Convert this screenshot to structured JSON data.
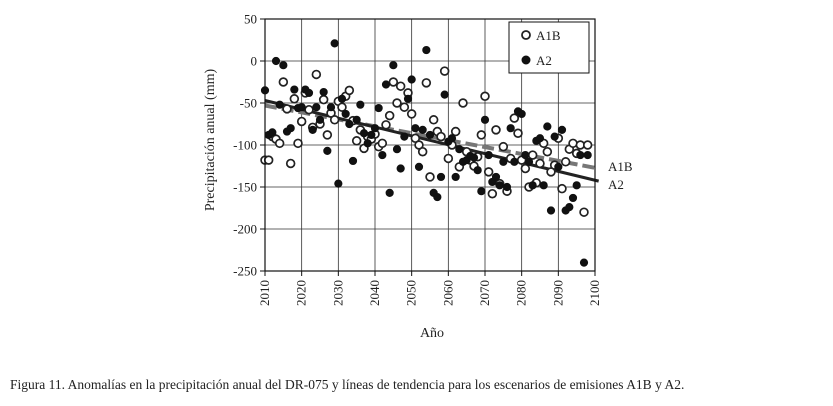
{
  "caption": "Figura 11. Anomalías en la precipitación anual del DR-075 y líneas de tendencia para los escenarios de emisiones A1B y A2.",
  "chart_data": {
    "type": "scatter",
    "title": "",
    "xlabel": "Año",
    "ylabel": "Precipitación anual (mm)",
    "xlim": [
      2010,
      2100
    ],
    "ylim": [
      -250,
      50
    ],
    "xticks": [
      "2010",
      "2020",
      "2030",
      "2040",
      "2050",
      "2060",
      "2070",
      "2080",
      "2090",
      "2100"
    ],
    "yticks": [
      "50",
      "0",
      "-50",
      "-100",
      "-150",
      "-200",
      "-250"
    ],
    "xtick_values": [
      2010,
      2020,
      2030,
      2040,
      2050,
      2060,
      2070,
      2080,
      2090,
      2100
    ],
    "ytick_values": [
      50,
      0,
      -50,
      -100,
      -150,
      -200,
      -250
    ],
    "grid": true,
    "legend_position": "top-right",
    "legend": [
      "A1B",
      "A2"
    ],
    "colors": {
      "A1B": "#222222",
      "A2": "#111111",
      "A1B_trend": "#777777",
      "A2_trend": "#222222"
    },
    "series": [
      {
        "name": "A1B",
        "marker": "open-circle",
        "points": [
          [
            2010,
            -118
          ],
          [
            2011,
            -118
          ],
          [
            2012,
            -90
          ],
          [
            2013,
            -93
          ],
          [
            2014,
            -98
          ],
          [
            2015,
            -25
          ],
          [
            2016,
            -57
          ],
          [
            2017,
            -122
          ],
          [
            2018,
            -45
          ],
          [
            2019,
            -98
          ],
          [
            2020,
            -72
          ],
          [
            2021,
            -38
          ],
          [
            2022,
            -58
          ],
          [
            2023,
            -79
          ],
          [
            2024,
            -16
          ],
          [
            2025,
            -75
          ],
          [
            2026,
            -46
          ],
          [
            2027,
            -88
          ],
          [
            2028,
            -62
          ],
          [
            2029,
            -70
          ],
          [
            2030,
            -48
          ],
          [
            2031,
            -55
          ],
          [
            2032,
            -42
          ],
          [
            2033,
            -35
          ],
          [
            2034,
            -71
          ],
          [
            2035,
            -95
          ],
          [
            2036,
            -82
          ],
          [
            2037,
            -104
          ],
          [
            2038,
            -90
          ],
          [
            2039,
            -93
          ],
          [
            2040,
            -87
          ],
          [
            2041,
            -102
          ],
          [
            2042,
            -98
          ],
          [
            2043,
            -76
          ],
          [
            2044,
            -65
          ],
          [
            2045,
            -25
          ],
          [
            2046,
            -50
          ],
          [
            2047,
            -30
          ],
          [
            2048,
            -55
          ],
          [
            2049,
            -38
          ],
          [
            2050,
            -63
          ],
          [
            2051,
            -92
          ],
          [
            2052,
            -100
          ],
          [
            2053,
            -108
          ],
          [
            2054,
            -26
          ],
          [
            2055,
            -138
          ],
          [
            2056,
            -70
          ],
          [
            2057,
            -84
          ],
          [
            2058,
            -90
          ],
          [
            2059,
            -12
          ],
          [
            2060,
            -116
          ],
          [
            2061,
            -100
          ],
          [
            2062,
            -84
          ],
          [
            2063,
            -126
          ],
          [
            2064,
            -50
          ],
          [
            2065,
            -108
          ],
          [
            2066,
            -118
          ],
          [
            2067,
            -125
          ],
          [
            2068,
            -114
          ],
          [
            2069,
            -88
          ],
          [
            2070,
            -42
          ],
          [
            2071,
            -132
          ],
          [
            2072,
            -158
          ],
          [
            2073,
            -82
          ],
          [
            2074,
            -146
          ],
          [
            2075,
            -102
          ],
          [
            2076,
            -155
          ],
          [
            2077,
            -116
          ],
          [
            2078,
            -68
          ],
          [
            2079,
            -86
          ],
          [
            2080,
            -118
          ],
          [
            2081,
            -128
          ],
          [
            2082,
            -150
          ],
          [
            2083,
            -112
          ],
          [
            2084,
            -145
          ],
          [
            2085,
            -122
          ],
          [
            2086,
            -98
          ],
          [
            2087,
            -108
          ],
          [
            2088,
            -132
          ],
          [
            2089,
            -124
          ],
          [
            2090,
            -92
          ],
          [
            2091,
            -152
          ],
          [
            2092,
            -120
          ],
          [
            2093,
            -105
          ],
          [
            2094,
            -98
          ],
          [
            2095,
            -110
          ],
          [
            2096,
            -100
          ],
          [
            2097,
            -180
          ],
          [
            2098,
            -100
          ]
        ]
      },
      {
        "name": "A2",
        "marker": "filled-circle",
        "points": [
          [
            2010,
            -35
          ],
          [
            2011,
            -88
          ],
          [
            2012,
            -85
          ],
          [
            2013,
            0
          ],
          [
            2014,
            -52
          ],
          [
            2015,
            -5
          ],
          [
            2016,
            -84
          ],
          [
            2017,
            -80
          ],
          [
            2018,
            -34
          ],
          [
            2019,
            -56
          ],
          [
            2020,
            -55
          ],
          [
            2021,
            -34
          ],
          [
            2022,
            -38
          ],
          [
            2023,
            -82
          ],
          [
            2024,
            -55
          ],
          [
            2025,
            -70
          ],
          [
            2026,
            -37
          ],
          [
            2027,
            -107
          ],
          [
            2028,
            -55
          ],
          [
            2029,
            21
          ],
          [
            2030,
            -146
          ],
          [
            2031,
            -45
          ],
          [
            2032,
            -63
          ],
          [
            2033,
            -75
          ],
          [
            2034,
            -119
          ],
          [
            2035,
            -70
          ],
          [
            2036,
            -52
          ],
          [
            2037,
            -86
          ],
          [
            2038,
            -98
          ],
          [
            2039,
            -88
          ],
          [
            2040,
            -80
          ],
          [
            2041,
            -56
          ],
          [
            2042,
            -112
          ],
          [
            2043,
            -28
          ],
          [
            2044,
            -157
          ],
          [
            2045,
            -5
          ],
          [
            2046,
            -105
          ],
          [
            2047,
            -128
          ],
          [
            2048,
            -90
          ],
          [
            2049,
            -45
          ],
          [
            2050,
            -22
          ],
          [
            2051,
            -80
          ],
          [
            2052,
            -126
          ],
          [
            2053,
            -82
          ],
          [
            2054,
            13
          ],
          [
            2055,
            -88
          ],
          [
            2056,
            -157
          ],
          [
            2057,
            -162
          ],
          [
            2058,
            -138
          ],
          [
            2059,
            -40
          ],
          [
            2060,
            -96
          ],
          [
            2061,
            -92
          ],
          [
            2062,
            -138
          ],
          [
            2063,
            -105
          ],
          [
            2064,
            -120
          ],
          [
            2065,
            -118
          ],
          [
            2066,
            -113
          ],
          [
            2067,
            -115
          ],
          [
            2068,
            -130
          ],
          [
            2069,
            -155
          ],
          [
            2070,
            -70
          ],
          [
            2071,
            -112
          ],
          [
            2072,
            -144
          ],
          [
            2073,
            -138
          ],
          [
            2074,
            -148
          ],
          [
            2075,
            -120
          ],
          [
            2076,
            -150
          ],
          [
            2077,
            -80
          ],
          [
            2078,
            -120
          ],
          [
            2079,
            -60
          ],
          [
            2080,
            -63
          ],
          [
            2081,
            -112
          ],
          [
            2082,
            -120
          ],
          [
            2083,
            -148
          ],
          [
            2084,
            -95
          ],
          [
            2085,
            -92
          ],
          [
            2086,
            -148
          ],
          [
            2087,
            -78
          ],
          [
            2088,
            -178
          ],
          [
            2089,
            -90
          ],
          [
            2090,
            -126
          ],
          [
            2091,
            -82
          ],
          [
            2092,
            -178
          ],
          [
            2093,
            -174
          ],
          [
            2094,
            -163
          ],
          [
            2095,
            -148
          ],
          [
            2096,
            -112
          ],
          [
            2097,
            -240
          ],
          [
            2098,
            -112
          ]
        ]
      }
    ],
    "trend_lines": [
      {
        "name": "A1B",
        "label": "A1B",
        "style": "dashed-gray",
        "start": [
          2010,
          -53
        ],
        "end": [
          2101,
          -128
        ]
      },
      {
        "name": "A2",
        "label": "A2",
        "style": "solid-black",
        "start": [
          2010,
          -47
        ],
        "end": [
          2101,
          -143
        ]
      }
    ]
  }
}
